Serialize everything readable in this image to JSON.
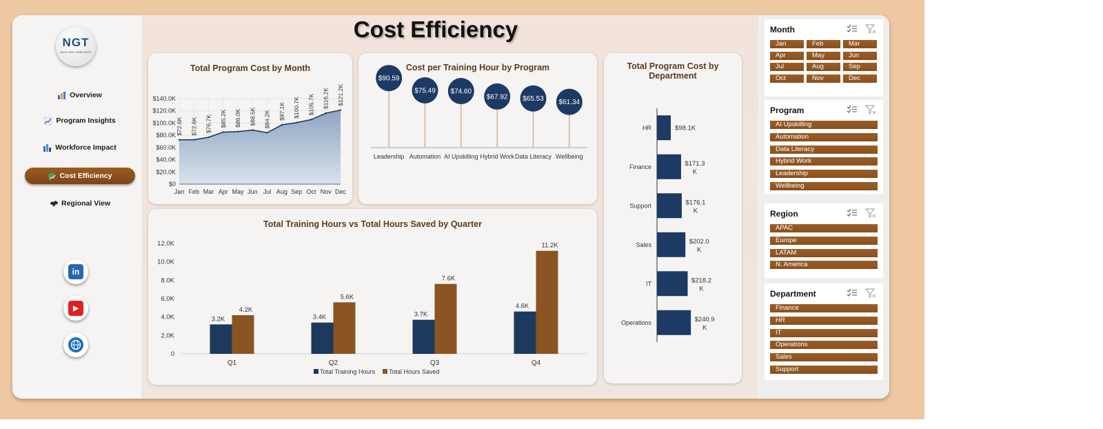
{
  "page_title": "Cost Efficiency",
  "logo": {
    "text": "NGT",
    "subtitle": "NEXT GEN TEMPLATES"
  },
  "nav": [
    {
      "label": "Overview",
      "icon": "bar-chart-icon",
      "active": false
    },
    {
      "label": "Program Insights",
      "icon": "line-chart-icon",
      "active": false
    },
    {
      "label": "Workforce Impact",
      "icon": "people-chart-icon",
      "active": false
    },
    {
      "label": "Cost Efficiency",
      "icon": "money-chart-icon",
      "active": true
    },
    {
      "label": "Regional View",
      "icon": "world-map-icon",
      "active": false
    }
  ],
  "social": [
    {
      "name": "linkedin-icon",
      "glyph": "in",
      "color": "#2867b2"
    },
    {
      "name": "youtube-icon",
      "glyph": "▶",
      "color": "#e02020"
    },
    {
      "name": "website-globe-icon",
      "glyph": "🌐",
      "color": "#1d6fb8"
    }
  ],
  "charts": [
    {
      "type": "area",
      "title": "Total Program Cost by Month",
      "categories": [
        "Jan",
        "Feb",
        "Mar",
        "Apr",
        "May",
        "Jun",
        "Jul",
        "Aug",
        "Sep",
        "Oct",
        "Nov",
        "Dec"
      ],
      "values": [
        72.6,
        72.6,
        76.7,
        85.2,
        86.0,
        88.5,
        84.2,
        97.1,
        100.7,
        105.7,
        116.2,
        121.2
      ],
      "data_labels": [
        "$72.6K",
        "$72.6K",
        "$76.7K",
        "$85.2K",
        "$86.0K",
        "$88.5K",
        "$84.2K",
        "$97.1K",
        "$100.7K",
        "$105.7K",
        "$116.2K",
        "$121.2K"
      ],
      "y_ticks": [
        "$0",
        "$20.0K",
        "$40.0K",
        "$60.0K",
        "$80.0K",
        "$100.0K",
        "$120.0K",
        "$140.0K"
      ],
      "ylim": [
        0,
        140
      ],
      "grid": true,
      "colors": {
        "line": "#1e3a5f",
        "fill_top": "#8ea5c2",
        "fill_bottom": "#d9e2ee"
      }
    },
    {
      "type": "lollipop",
      "title": "Cost per Training Hour by Program",
      "categories": [
        "Leadership",
        "Automation",
        "AI Upskilling",
        "Hybrid Work",
        "Data Literacy",
        "Wellbeing"
      ],
      "values": [
        90.59,
        75.49,
        74.6,
        67.92,
        65.53,
        61.34
      ],
      "data_labels": [
        "$90.59",
        "$75.49",
        "$74.60",
        "$67.92",
        "$65.53",
        "$61.34"
      ],
      "colors": {
        "head": "#1c3a64",
        "stem": "#d9bfa8"
      }
    },
    {
      "type": "bar",
      "title": "Total Training Hours vs Total Hours Saved by Quarter",
      "categories": [
        "Q1",
        "Q2",
        "Q3",
        "Q4"
      ],
      "series": [
        {
          "name": "Total Training Hours",
          "values": [
            3.2,
            3.4,
            3.7,
            4.6
          ],
          "labels": [
            "3.2K",
            "3.4K",
            "3.7K",
            "4.6K"
          ],
          "color": "#1c3a5e"
        },
        {
          "name": "Total Hours Saved",
          "values": [
            4.2,
            5.6,
            7.6,
            11.2
          ],
          "labels": [
            "4.2K",
            "5.6K",
            "7.6K",
            "11.2K"
          ],
          "color": "#8b5423"
        }
      ],
      "y_ticks": [
        "0",
        "2.0K",
        "4.0K",
        "6.0K",
        "8.0K",
        "10.0K",
        "12.0K"
      ],
      "ylim": [
        0,
        12
      ],
      "legend": "bottom"
    },
    {
      "type": "bar-horizontal",
      "title": "Total Program Cost by Department",
      "categories": [
        "HR",
        "Finance",
        "Support",
        "Sales",
        "IT",
        "Operations"
      ],
      "values": [
        98.1,
        171.3,
        176.1,
        202.0,
        218.2,
        240.9
      ],
      "data_labels": [
        [
          "$98.1K"
        ],
        [
          "$171.3",
          "K"
        ],
        [
          "$176.1",
          "K"
        ],
        [
          "$202.0",
          "K"
        ],
        [
          "$218.2",
          "K"
        ],
        [
          "$240.9",
          "K"
        ]
      ],
      "color": "#1c3a64"
    }
  ],
  "slicers": [
    {
      "title": "Month",
      "items": [
        "Jan",
        "Feb",
        "Mar",
        "Apr",
        "May",
        "Jun",
        "Jul",
        "Aug",
        "Sep",
        "Oct",
        "Nov",
        "Dec"
      ],
      "columns": 3
    },
    {
      "title": "Program",
      "items": [
        "AI Upskilling",
        "Automation",
        "Data Literacy",
        "Hybrid Work",
        "Leadership",
        "Wellbeing"
      ],
      "columns": 1
    },
    {
      "title": "Region",
      "items": [
        "APAC",
        "Europe",
        "LATAM",
        "N. America"
      ],
      "columns": 1
    },
    {
      "title": "Department",
      "items": [
        "Finance",
        "HR",
        "IT",
        "Operations",
        "Sales",
        "Support"
      ],
      "columns": 1
    }
  ],
  "slicer_tools": {
    "multi_select_icon": "multi-select-icon",
    "clear_filter_icon": "clear-filter-icon"
  }
}
